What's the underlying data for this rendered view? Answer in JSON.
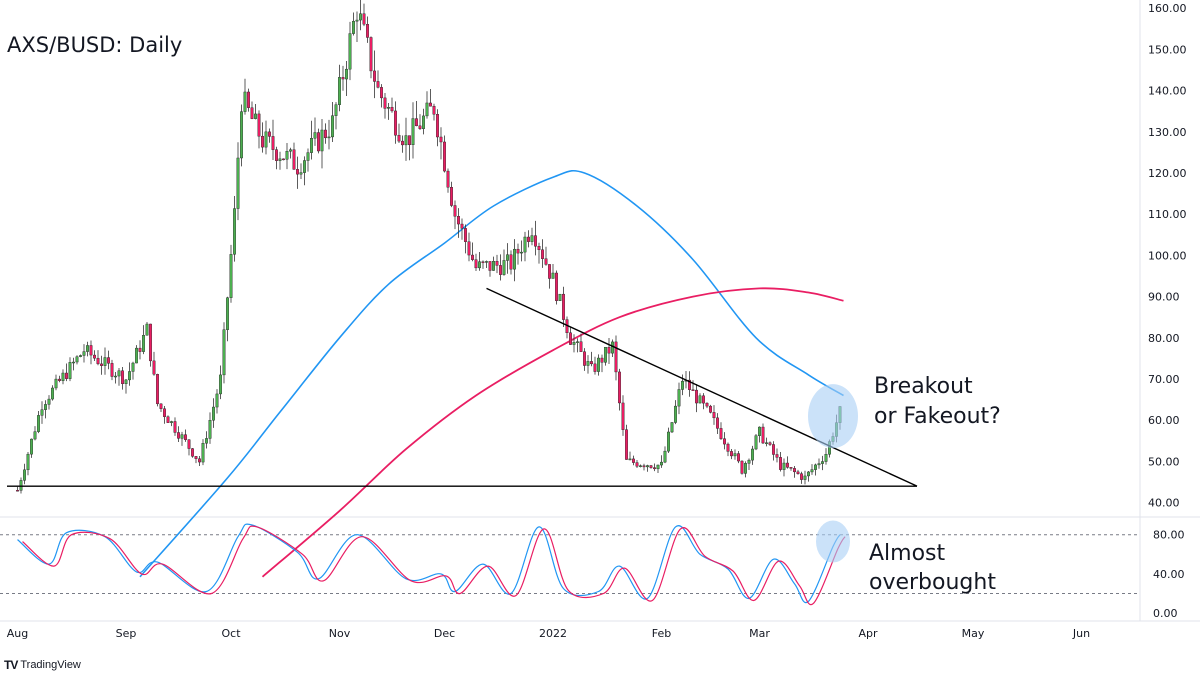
{
  "chart_data": {
    "type": "candlestick",
    "title": "AXS/BUSD: Daily",
    "price_axis": {
      "ticks": [
        "160.00",
        "150.00",
        "140.00",
        "130.00",
        "120.00",
        "110.00",
        "100.00",
        "90.00",
        "80.00",
        "70.00",
        "60.00",
        "50.00",
        "40.00"
      ],
      "ylim": [
        37,
        162
      ]
    },
    "rsi_axis": {
      "ticks": [
        "80.00",
        "40.00",
        "0.00"
      ],
      "ylim": [
        -5,
        95
      ],
      "overbought_level": 80,
      "oversold_level": 20
    },
    "time_axis": [
      "Aug",
      "Sep",
      "Oct",
      "Nov",
      "Dec",
      "2022",
      "Feb",
      "Mar",
      "Apr",
      "May",
      "Jun"
    ],
    "colors": {
      "up": "#4caf50",
      "down": "#e91e63",
      "wick": "#333333",
      "ma_fast": "#2196f3",
      "ma_slow": "#e91e63",
      "trendline": "#000000",
      "highlight": "#a9cff5"
    },
    "key_closes": [
      {
        "date": "2021-08-01",
        "close": 43
      },
      {
        "date": "2021-08-08",
        "close": 64
      },
      {
        "date": "2021-08-20",
        "close": 77
      },
      {
        "date": "2021-09-01",
        "close": 70
      },
      {
        "date": "2021-09-07",
        "close": 82
      },
      {
        "date": "2021-09-10",
        "close": 64
      },
      {
        "date": "2021-09-22",
        "close": 50
      },
      {
        "date": "2021-09-28",
        "close": 70
      },
      {
        "date": "2021-10-02",
        "close": 110
      },
      {
        "date": "2021-10-04",
        "close": 138
      },
      {
        "date": "2021-10-10",
        "close": 128
      },
      {
        "date": "2021-10-20",
        "close": 122
      },
      {
        "date": "2021-10-30",
        "close": 132
      },
      {
        "date": "2021-11-06",
        "close": 160
      },
      {
        "date": "2021-11-12",
        "close": 140
      },
      {
        "date": "2021-11-20",
        "close": 128
      },
      {
        "date": "2021-11-28",
        "close": 136
      },
      {
        "date": "2021-12-04",
        "close": 110
      },
      {
        "date": "2021-12-10",
        "close": 97
      },
      {
        "date": "2021-12-20",
        "close": 98
      },
      {
        "date": "2021-12-26",
        "close": 107
      },
      {
        "date": "2022-01-01",
        "close": 94
      },
      {
        "date": "2022-01-06",
        "close": 80
      },
      {
        "date": "2022-01-12",
        "close": 72
      },
      {
        "date": "2022-01-18",
        "close": 78
      },
      {
        "date": "2022-01-22",
        "close": 50
      },
      {
        "date": "2022-02-01",
        "close": 49
      },
      {
        "date": "2022-02-07",
        "close": 70
      },
      {
        "date": "2022-02-15",
        "close": 61
      },
      {
        "date": "2022-02-24",
        "close": 48
      },
      {
        "date": "2022-03-01",
        "close": 57
      },
      {
        "date": "2022-03-07",
        "close": 49
      },
      {
        "date": "2022-03-14",
        "close": 46
      },
      {
        "date": "2022-03-20",
        "close": 52
      },
      {
        "date": "2022-03-24",
        "close": 62
      }
    ],
    "rsi_points": [
      {
        "date": "2021-08-01",
        "value": 75
      },
      {
        "date": "2021-08-10",
        "value": 50
      },
      {
        "date": "2021-08-15",
        "value": 82
      },
      {
        "date": "2021-08-26",
        "value": 78
      },
      {
        "date": "2021-09-04",
        "value": 42
      },
      {
        "date": "2021-09-10",
        "value": 52
      },
      {
        "date": "2021-09-24",
        "value": 22
      },
      {
        "date": "2021-10-03",
        "value": 78
      },
      {
        "date": "2021-10-07",
        "value": 90
      },
      {
        "date": "2021-10-20",
        "value": 62
      },
      {
        "date": "2021-10-26",
        "value": 35
      },
      {
        "date": "2021-11-06",
        "value": 80
      },
      {
        "date": "2021-11-20",
        "value": 35
      },
      {
        "date": "2021-11-30",
        "value": 40
      },
      {
        "date": "2021-12-04",
        "value": 22
      },
      {
        "date": "2021-12-12",
        "value": 50
      },
      {
        "date": "2021-12-20",
        "value": 20
      },
      {
        "date": "2021-12-28",
        "value": 88
      },
      {
        "date": "2022-01-04",
        "value": 25
      },
      {
        "date": "2022-01-14",
        "value": 22
      },
      {
        "date": "2022-01-20",
        "value": 48
      },
      {
        "date": "2022-01-28",
        "value": 15
      },
      {
        "date": "2022-02-05",
        "value": 88
      },
      {
        "date": "2022-02-12",
        "value": 60
      },
      {
        "date": "2022-02-20",
        "value": 45
      },
      {
        "date": "2022-02-26",
        "value": 15
      },
      {
        "date": "2022-03-05",
        "value": 55
      },
      {
        "date": "2022-03-11",
        "value": 30
      },
      {
        "date": "2022-03-15",
        "value": 12
      },
      {
        "date": "2022-03-22",
        "value": 68
      },
      {
        "date": "2022-03-24",
        "value": 80
      }
    ],
    "ma_fast_points": [
      {
        "date": "2021-09-05",
        "value": 22
      },
      {
        "date": "2021-09-30",
        "value": 46
      },
      {
        "date": "2021-10-15",
        "value": 62
      },
      {
        "date": "2021-11-01",
        "value": 80
      },
      {
        "date": "2021-11-15",
        "value": 93
      },
      {
        "date": "2021-12-01",
        "value": 103
      },
      {
        "date": "2021-12-15",
        "value": 112
      },
      {
        "date": "2022-01-01",
        "value": 119
      },
      {
        "date": "2022-01-10",
        "value": 120
      },
      {
        "date": "2022-01-25",
        "value": 112
      },
      {
        "date": "2022-02-10",
        "value": 99
      },
      {
        "date": "2022-02-28",
        "value": 80
      },
      {
        "date": "2022-03-15",
        "value": 71
      },
      {
        "date": "2022-03-25",
        "value": 66
      }
    ],
    "ma_slow_points": [
      {
        "date": "2021-10-10",
        "value": 22
      },
      {
        "date": "2021-11-01",
        "value": 38
      },
      {
        "date": "2021-11-20",
        "value": 53
      },
      {
        "date": "2021-12-10",
        "value": 66
      },
      {
        "date": "2022-01-01",
        "value": 77
      },
      {
        "date": "2022-01-20",
        "value": 85
      },
      {
        "date": "2022-02-10",
        "value": 90
      },
      {
        "date": "2022-03-01",
        "value": 92
      },
      {
        "date": "2022-03-15",
        "value": 91
      },
      {
        "date": "2022-03-25",
        "value": 89
      }
    ],
    "trendlines": [
      {
        "name": "support",
        "from": {
          "date": "2021-07-29",
          "value": 44
        },
        "to": {
          "date": "2022-04-15",
          "value": 44
        }
      },
      {
        "name": "descending",
        "from": {
          "date": "2021-12-13",
          "value": 92
        },
        "to": {
          "date": "2022-04-15",
          "value": 44
        }
      }
    ],
    "annotations": [
      {
        "text": [
          "Breakout",
          "or Fakeout?"
        ],
        "panel": "price"
      },
      {
        "text": [
          "Almost",
          "overbought"
        ],
        "panel": "rsi"
      }
    ]
  },
  "branding": {
    "logo": "TV",
    "name": "TradingView"
  }
}
